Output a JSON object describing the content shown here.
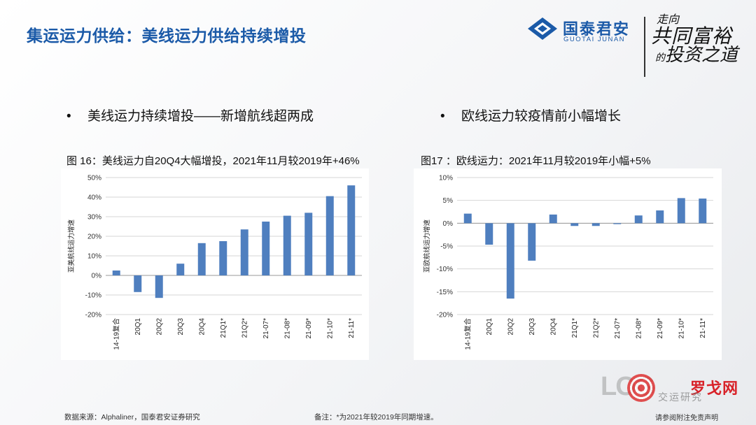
{
  "header": {
    "title": "集运运力供给：美线运力供给持续增投",
    "brand": {
      "cn": "国泰君安",
      "en": "GUOTAI JUNAN"
    },
    "slogan": {
      "line1": "走向",
      "line2": "共同富裕",
      "line3a": "的",
      "line3b": "投资之道"
    }
  },
  "bullets": [
    {
      "marker": "•",
      "text": "美线运力持续增投——新增航线超两成"
    },
    {
      "marker": "•",
      "text": "欧线运力较疫情前小幅增长"
    }
  ],
  "captions": [
    "图 16：美线运力自20Q4大幅增投，2021年11月较2019年+46%",
    "图17 ：欧线运力：2021年11月较2019年小幅+5%"
  ],
  "colors": {
    "bar": "#4f7fbf",
    "title": "#1b5aa8",
    "grid": "#d6d6d6",
    "watermark": "#d8232a"
  },
  "chart_data": [
    {
      "type": "bar",
      "ylabel": "亚美航线运力增速",
      "ylim": [
        -20,
        50
      ],
      "yticks": [
        50,
        40,
        30,
        20,
        10,
        0,
        -10,
        -20
      ],
      "tick_format": "percent",
      "grid": true,
      "categories": [
        "14-19复合",
        "20Q1",
        "20Q2",
        "20Q3",
        "20Q4",
        "21Q1*",
        "21Q2*",
        "21-07*",
        "21-08*",
        "21-09*",
        "21-10*",
        "21-11*"
      ],
      "values": [
        2.5,
        -8.5,
        -11.5,
        6,
        16.5,
        17.5,
        23.5,
        27.5,
        30.5,
        32,
        40.5,
        46
      ]
    },
    {
      "type": "bar",
      "ylabel": "亚欧航线运力增速",
      "ylim": [
        -20,
        10
      ],
      "yticks": [
        10,
        5,
        0,
        -5,
        -10,
        -15,
        -20
      ],
      "tick_format": "percent",
      "grid": true,
      "categories": [
        "14-19复合",
        "20Q1",
        "20Q2",
        "20Q3",
        "20Q4",
        "21Q1*",
        "21Q2*",
        "21-07*",
        "21-08*",
        "21-09*",
        "21-10*",
        "21-11*"
      ],
      "values": [
        2.1,
        -4.7,
        -16.5,
        -8.2,
        1.9,
        -0.6,
        -0.6,
        -0.2,
        1.7,
        2.8,
        5.5,
        5.4
      ]
    }
  ],
  "footer": {
    "source": "数据来源：Alphaliner，国泰君安证券研究",
    "note": "备注：*为2021年较2019年同期增速。",
    "disclaimer": "请参阅附注免责声明"
  },
  "watermark": {
    "log": "LOG",
    "cn": "罗戈网",
    "sub": "交运研究"
  }
}
